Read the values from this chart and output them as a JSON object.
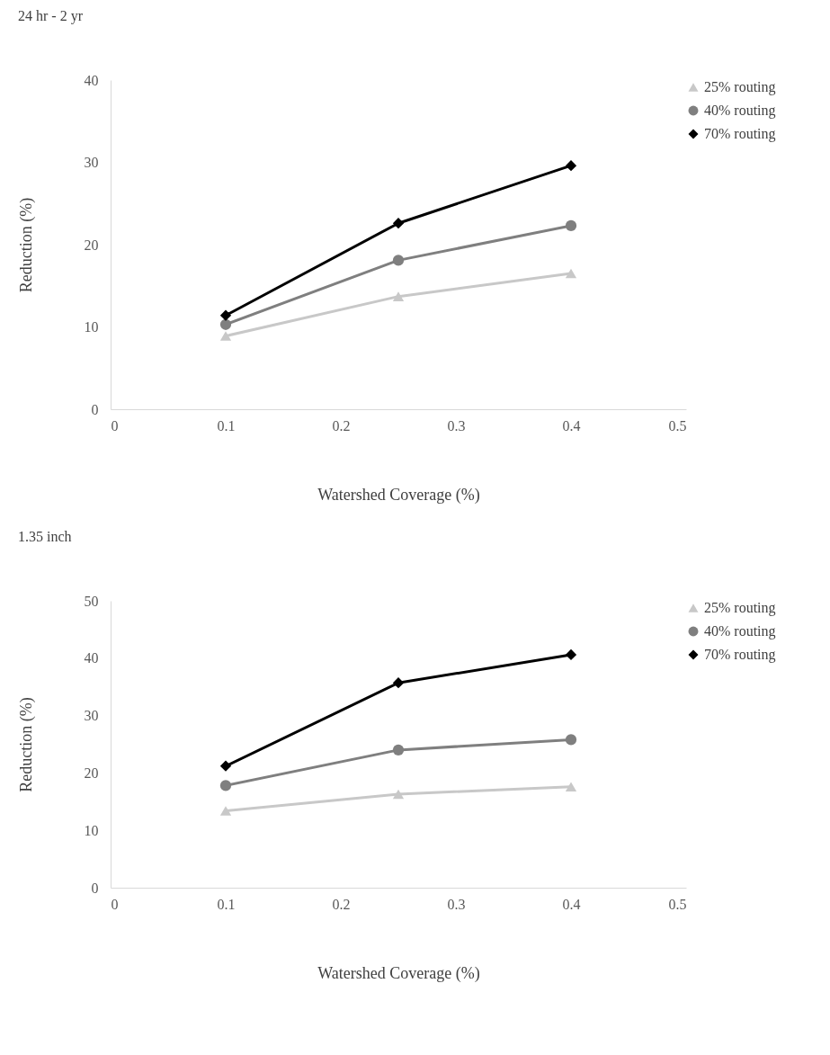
{
  "chart_data": [
    {
      "type": "line",
      "title": "24 hr - 2 yr",
      "xlabel": "Watershed Coverage (%)",
      "ylabel": "Reduction (%)",
      "x": [
        0.1,
        0.25,
        0.4
      ],
      "xlim": [
        0,
        0.5
      ],
      "xticks": [
        0,
        0.1,
        0.2,
        0.3,
        0.4,
        0.5
      ],
      "ylim": [
        0,
        40
      ],
      "yticks": [
        0,
        10,
        20,
        30,
        40
      ],
      "legend": "top right",
      "series": [
        {
          "name": "25% routing",
          "color": "#c8c8c8",
          "marker": "triangle",
          "values": [
            8.9,
            13.7,
            16.5
          ]
        },
        {
          "name": "40% routing",
          "color": "#7f7f7f",
          "marker": "circle",
          "values": [
            10.3,
            18.1,
            22.3
          ]
        },
        {
          "name": "70% routing",
          "color": "#000000",
          "marker": "diamond",
          "values": [
            11.4,
            22.6,
            29.6
          ]
        }
      ]
    },
    {
      "type": "line",
      "title": "1.35 inch",
      "xlabel": "Watershed Coverage (%)",
      "ylabel": "Reduction (%)",
      "x": [
        0.1,
        0.25,
        0.4
      ],
      "xlim": [
        0,
        0.5
      ],
      "xticks": [
        0,
        0.1,
        0.2,
        0.3,
        0.4,
        0.5
      ],
      "ylim": [
        0,
        50
      ],
      "yticks": [
        0,
        10,
        20,
        30,
        40,
        50
      ],
      "legend": "top right",
      "series": [
        {
          "name": "25% routing",
          "color": "#c8c8c8",
          "marker": "triangle",
          "values": [
            13.4,
            16.3,
            17.6
          ]
        },
        {
          "name": "40% routing",
          "color": "#7f7f7f",
          "marker": "circle",
          "values": [
            17.8,
            24.0,
            25.8
          ]
        },
        {
          "name": "70% routing",
          "color": "#000000",
          "marker": "diamond",
          "values": [
            21.2,
            35.7,
            40.6
          ]
        }
      ]
    }
  ]
}
